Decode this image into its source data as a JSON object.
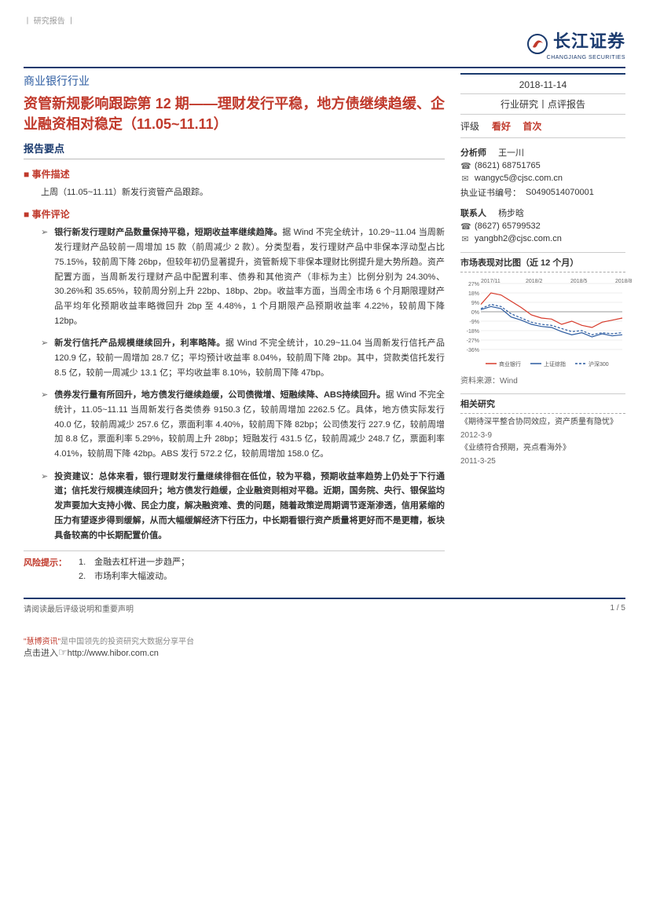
{
  "top_label": "丨 研究报告 丨",
  "logo": {
    "cn": "长江证券",
    "en": "CHANGJIANG SECURITIES"
  },
  "sector": "商业银行行业",
  "title": "资管新规影响跟踪第 12 期——理财发行平稳，地方债继续趋缓、企业融资相对稳定（11.05~11.11）",
  "report_points_heading": "报告要点",
  "event_desc": {
    "heading": "事件描述",
    "text": "上周（11.05~11.11）新发行资管产品跟踪。"
  },
  "event_comment_heading": "事件评论",
  "bullets": [
    {
      "lead": "银行新发行理财产品数量保持平稳，短期收益率继续趋降。",
      "rest": "据 Wind 不完全统计，10.29~11.04 当周新发行理财产品较前一周增加 15 款（前周减少 2 款）。分类型看，发行理财产品中非保本浮动型占比 75.15%，较前周下降 26bp，但较年初仍显著提升，资管新规下非保本理财比例提升是大势所趋。资产配置方面，当周新发行理财产品中配置利率、债券和其他资产（非标为主）比例分别为 24.30%、30.26%和 35.65%，较前周分别上升 22bp、18bp、2bp。收益率方面，当周全市场 6 个月期限理财产品平均年化预期收益率略微回升 2bp 至 4.48%，1 个月期限产品预期收益率 4.22%，较前周下降 12bp。"
    },
    {
      "lead": "新发行信托产品规模继续回升，利率略降。",
      "rest": "据 Wind 不完全统计，10.29~11.04 当周新发行信托产品 120.9 亿，较前一周增加 28.7 亿；平均预计收益率 8.04%，较前周下降 2bp。其中，贷款类信托发行 8.5 亿，较前一周减少 13.1 亿；平均收益率 8.10%，较前周下降 47bp。"
    },
    {
      "lead": "债券发行量有所回升，地方债发行继续趋缓，公司债微增、短融续降、ABS持续回升。",
      "rest": "据 Wind 不完全统计，11.05~11.11 当周新发行各类债券 9150.3 亿，较前周增加 2262.5 亿。具体，地方债实际发行 40.0 亿，较前周减少 257.6 亿，票面利率 4.40%，较前周下降 82bp；公司债发行 227.9 亿，较前周增加 8.8 亿，票面利率 5.29%，较前周上升 28bp；短融发行 431.5 亿，较前周减少 248.7 亿，票面利率 4.01%，较前周下降 42bp。ABS 发行 572.2 亿，较前周增加 158.0 亿。"
    },
    {
      "lead": "投资建议：总体来看，银行理财发行量继续徘徊在低位，较为平稳，预期收益率趋势上仍处于下行通道；信托发行规模连续回升；地方债发行趋缓，企业融资则相对平稳。近期，国务院、央行、银保监均发声要加大支持小微、民企力度，解决融资难、贵的问题，随着政策逆周期调节逐渐渗透，信用紧缩的压力有望逐步得到缓解，从而大幅缓解经济下行压力，中长期看银行资产质量将更好而不是更糟，板块具备较高的中长期配置价值。",
      "rest": ""
    }
  ],
  "risk": {
    "label": "风险提示：",
    "items": [
      "1.　金融去杠杆进一步趋严；",
      "2.　市场利率大幅波动。"
    ]
  },
  "sidebar": {
    "date": "2018-11-14",
    "report_type": "行业研究丨点评报告",
    "rating_label": "评级",
    "rating_value": "看好",
    "rating_first": "首次",
    "analyst_label": "分析师",
    "analyst_name": "王一川",
    "analyst_phone": "(8621) 68751765",
    "analyst_email": "wangyc5@cjsc.com.cn",
    "license_label": "执业证书编号：",
    "license_no": "S0490514070001",
    "contact_label": "联系人",
    "contact_name": "杨步晗",
    "contact_phone": "(8627) 65799532",
    "contact_email": "yangbh2@cjsc.com.cn",
    "chart_heading": "市场表现对比图（近 12 个月）",
    "chart": {
      "x_labels": [
        "2017/11",
        "2018/2",
        "2018/5",
        "2018/8"
      ],
      "y_ticks": [
        -36,
        -27,
        -18,
        -9,
        0,
        9,
        18,
        27
      ],
      "series": [
        {
          "name": "商业银行",
          "color": "#d73a2a",
          "points": [
            7,
            18,
            16,
            10,
            4,
            -3,
            -6,
            -7,
            -12,
            -9,
            -13,
            -15,
            -10,
            -8,
            -6
          ]
        },
        {
          "name": "上证综指",
          "color": "#2a5aa0",
          "points": [
            2,
            5,
            3,
            -5,
            -8,
            -12,
            -14,
            -15,
            -19,
            -22,
            -20,
            -24,
            -21,
            -23,
            -22
          ]
        },
        {
          "name": "沪深300",
          "color": "#2a5aa0",
          "dash": true,
          "points": [
            3,
            7,
            5,
            -2,
            -6,
            -10,
            -12,
            -13,
            -16,
            -19,
            -18,
            -22,
            -20,
            -21,
            -20
          ]
        }
      ],
      "source": "资料来源：Wind"
    },
    "related_heading": "相关研究",
    "related": [
      {
        "title": "《期待深平整合协同效应，资产质量有隐忧》",
        "date": "2012-3-9"
      },
      {
        "title": "《业绩符合预期，亮点看海外》",
        "date": "2011-3-25"
      }
    ]
  },
  "footer": {
    "disclaimer": "请阅读最后评级说明和重要声明",
    "page": "1 / 5"
  },
  "promo": {
    "line1_pre": "\"慧博资讯\"",
    "line1_rest": "是中国领先的投资研究大数据分享平台",
    "line2_pre": "点击进入",
    "line2_url": "http://www.hibor.com.cn"
  }
}
